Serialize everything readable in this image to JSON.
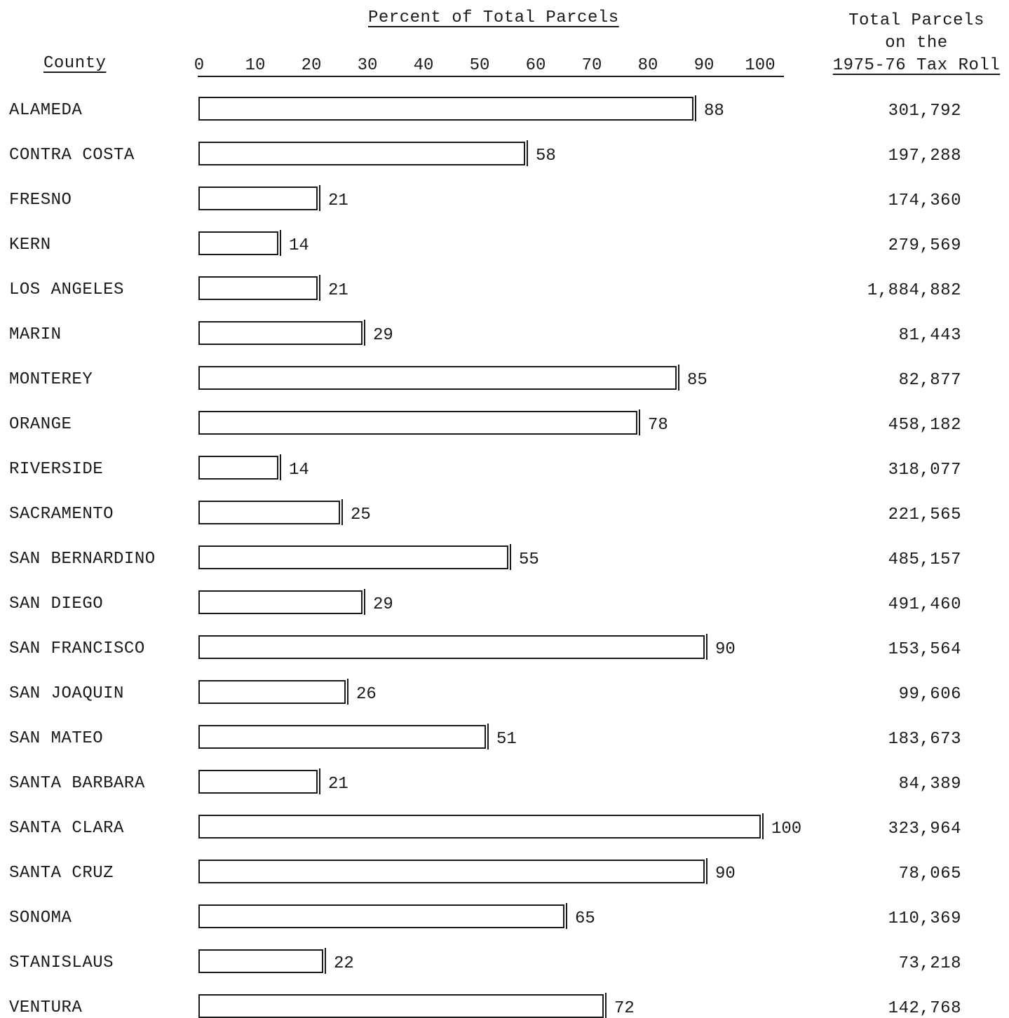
{
  "chart_data": {
    "type": "bar",
    "title": "Percent of Total Parcels",
    "row_label_header": "County",
    "right_column_header": [
      "Total Parcels",
      "on the",
      "1975-76 Tax Roll"
    ],
    "x_ticks": [
      "0",
      "10",
      "20",
      "30",
      "40",
      "50",
      "60",
      "70",
      "80",
      "90",
      "100"
    ],
    "xlim": [
      0,
      100
    ],
    "categories": [
      "ALAMEDA",
      "CONTRA COSTA",
      "FRESNO",
      "KERN",
      "LOS ANGELES",
      "MARIN",
      "MONTEREY",
      "ORANGE",
      "RIVERSIDE",
      "SACRAMENTO",
      "SAN BERNARDINO",
      "SAN DIEGO",
      "SAN FRANCISCO",
      "SAN JOAQUIN",
      "SAN MATEO",
      "SANTA BARBARA",
      "SANTA CLARA",
      "SANTA CRUZ",
      "SONOMA",
      "STANISLAUS",
      "VENTURA"
    ],
    "values": [
      88,
      58,
      21,
      14,
      21,
      29,
      85,
      78,
      14,
      25,
      55,
      29,
      90,
      26,
      51,
      21,
      100,
      90,
      65,
      22,
      72
    ],
    "total_parcels": [
      "301,792",
      "197,288",
      "174,360",
      "279,569",
      "1,884,882",
      "81,443",
      "82,877",
      "458,182",
      "318,077",
      "221,565",
      "485,157",
      "491,460",
      "153,564",
      "99,606",
      "183,673",
      "84,389",
      "323,964",
      "78,065",
      "110,369",
      "73,218",
      "142,768"
    ]
  }
}
